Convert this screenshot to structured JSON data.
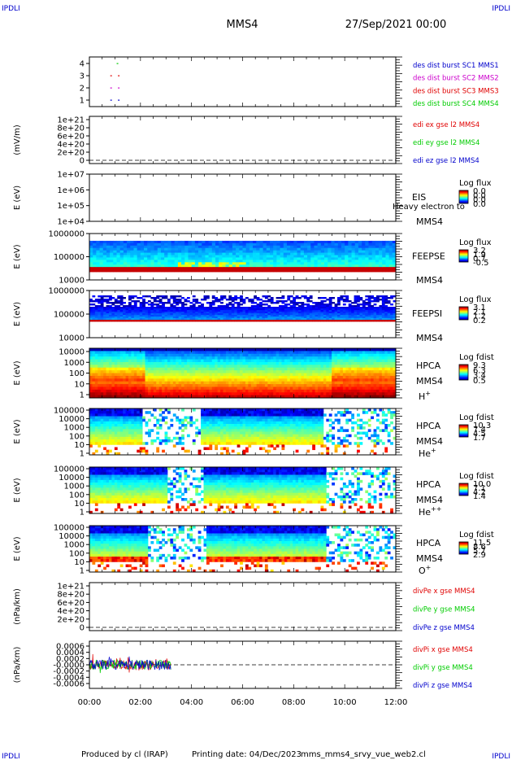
{
  "header": {
    "corner_label": "IPDLI",
    "spacecraft": "MMS4",
    "datetime": "27/Sep/2021 00:00"
  },
  "footer": {
    "produced_by": "Produced by cl (IRAP)",
    "printing_date": "Printing date: 04/Dec/2023",
    "filename": "mms_mms4_srvy_vue_web2.cl"
  },
  "colors": {
    "red": "#e00000",
    "green": "#00cc00",
    "blue": "#0000cc",
    "magenta": "#cc00cc",
    "spectrogram_low": "#0000a0",
    "spectrogram_high": "#d00000"
  },
  "x_axis": {
    "tick_labels": [
      "00:00",
      "02:00",
      "04:00",
      "06:00",
      "08:00",
      "10:00",
      "12:00"
    ],
    "range_hours": [
      0,
      12
    ]
  },
  "chart_data": [
    {
      "type": "scatter",
      "id": "burst",
      "ylabel": "",
      "yticks": [
        "4",
        "3",
        "2",
        "1"
      ],
      "legend": [
        {
          "name": "des dist burst SC1 MMS1",
          "color": "#0000cc"
        },
        {
          "name": "des dist burst SC2 MMS2",
          "color": "#cc00cc"
        },
        {
          "name": "des dist burst SC3 MMS3",
          "color": "#e00000"
        },
        {
          "name": "des dist burst SC4 MMS4",
          "color": "#00cc00"
        }
      ],
      "points": [
        {
          "sc": 4,
          "t": 1.1
        },
        {
          "sc": 3,
          "t": 0.85
        },
        {
          "sc": 3,
          "t": 1.15
        },
        {
          "sc": 2,
          "t": 0.85
        },
        {
          "sc": 2,
          "t": 1.15
        },
        {
          "sc": 1,
          "t": 0.85
        },
        {
          "sc": 1,
          "t": 1.15
        }
      ]
    },
    {
      "type": "line",
      "id": "edi",
      "ylabel": "(mV/m)",
      "yticks": [
        "1e+21",
        "8e+20",
        "6e+20",
        "4e+20",
        "2e+20",
        "0"
      ],
      "legend": [
        {
          "name": "edi ex gse l2 MMS4",
          "color": "#e00000"
        },
        {
          "name": "edi ey gse l2 MMS4",
          "color": "#00cc00"
        },
        {
          "name": "edi ez gse l2 MMS4",
          "color": "#0000cc"
        }
      ]
    },
    {
      "type": "heatmap",
      "id": "eis",
      "ylabel": "E (eV)",
      "yticks": [
        "1e+07",
        "1e+06",
        "1e+05",
        "1e+04"
      ],
      "instrument": "EIS",
      "overlay_text": "Heavy electron to",
      "spacecraft": "MMS4",
      "colorbar_title": "Log flux",
      "colorbar_ticks": [
        "0.0",
        "0.0",
        "0.0",
        "0.0"
      ]
    },
    {
      "type": "heatmap",
      "id": "feepse",
      "ylabel": "E (eV)",
      "yticks": [
        "1000000",
        "100000",
        "10000"
      ],
      "instrument": "FEEPSE",
      "spacecraft": "MMS4",
      "colorbar_title": "Log flux",
      "colorbar_ticks": [
        "3.2",
        "1.9",
        "0.7",
        "-0.5"
      ]
    },
    {
      "type": "heatmap",
      "id": "feepsi",
      "ylabel": "E (eV)",
      "yticks": [
        "1000000",
        "100000",
        "10000"
      ],
      "instrument": "FEEPSI",
      "spacecraft": "MMS4",
      "colorbar_title": "Log flux",
      "colorbar_ticks": [
        "3.1",
        "2.1",
        "1.2",
        "0.2"
      ]
    },
    {
      "type": "heatmap",
      "id": "hpca_h",
      "ylabel": "E (eV)",
      "yticks": [
        "10000",
        "1000",
        "100",
        "10",
        "1"
      ],
      "instrument": "HPCA",
      "spacecraft": "MMS4",
      "species": "H",
      "species_sup": "+",
      "colorbar_title": "Log fdist",
      "colorbar_ticks": [
        "9.3",
        "6.3",
        "3.4",
        "0.5"
      ]
    },
    {
      "type": "heatmap",
      "id": "hpca_he",
      "ylabel": "E (eV)",
      "yticks": [
        "100000",
        "10000",
        "1000",
        "100",
        "10",
        "1"
      ],
      "instrument": "HPCA",
      "spacecraft": "MMS4",
      "species": "He",
      "species_sup": "+",
      "colorbar_title": "Log fdist",
      "colorbar_ticks": [
        "10.3",
        "7.4",
        "4.5",
        "1.7"
      ]
    },
    {
      "type": "heatmap",
      "id": "hpca_hepp",
      "ylabel": "E (eV)",
      "yticks": [
        "100000",
        "10000",
        "1000",
        "100",
        "10",
        "1"
      ],
      "instrument": "HPCA",
      "spacecraft": "MMS4",
      "species": "He",
      "species_sup": "++",
      "colorbar_title": "Log fdist",
      "colorbar_ticks": [
        "10.0",
        "7.1",
        "4.2",
        "1.4"
      ]
    },
    {
      "type": "heatmap",
      "id": "hpca_o",
      "ylabel": "E (eV)",
      "yticks": [
        "100000",
        "10000",
        "1000",
        "100",
        "10",
        "1"
      ],
      "instrument": "HPCA",
      "spacecraft": "MMS4",
      "species": "O",
      "species_sup": "+",
      "colorbar_title": "Log fdist",
      "colorbar_ticks": [
        "11.5",
        "8.6",
        "5.7",
        "2.9"
      ]
    },
    {
      "type": "line",
      "id": "divpe",
      "ylabel": "(nPa/km)",
      "yticks": [
        "1e+21",
        "8e+20",
        "6e+20",
        "4e+20",
        "2e+20",
        "0"
      ],
      "legend": [
        {
          "name": "divPe x gse MMS4",
          "color": "#e00000"
        },
        {
          "name": "divPe y gse MMS4",
          "color": "#00cc00"
        },
        {
          "name": "divPe z gse MMS4",
          "color": "#0000cc"
        }
      ]
    },
    {
      "type": "line",
      "id": "divpi",
      "ylabel": "(nPa/km)",
      "yticks": [
        "0.0006",
        "0.0004",
        "0.0002",
        "-0.0000",
        "-0.0002",
        "-0.0004",
        "-0.0006"
      ],
      "ylim": [
        -0.0006,
        0.0006
      ],
      "data_end_hours": 3.2,
      "legend": [
        {
          "name": "divPi x gse MMS4",
          "color": "#e00000"
        },
        {
          "name": "divPi y gse MMS4",
          "color": "#00cc00"
        },
        {
          "name": "divPi z gse MMS4",
          "color": "#0000cc"
        }
      ]
    }
  ]
}
